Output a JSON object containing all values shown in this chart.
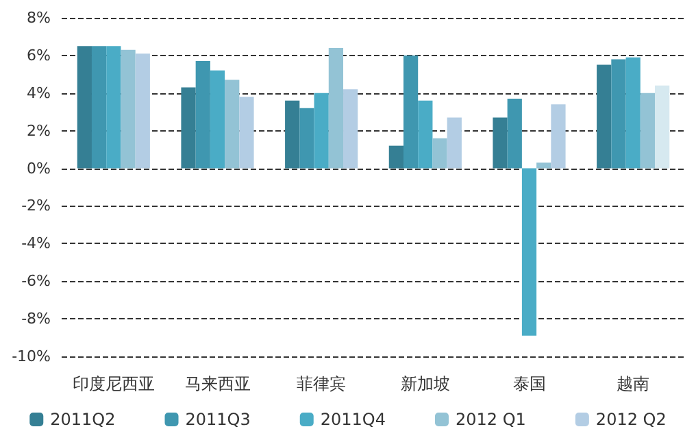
{
  "chart_data": {
    "type": "bar",
    "categories": [
      "印度尼西亚",
      "马来西亚",
      "菲律宾",
      "新加坡",
      "泰国",
      "越南"
    ],
    "series": [
      {
        "name": "2011Q2",
        "color": "#357f94",
        "values": [
          6.5,
          4.3,
          3.6,
          1.2,
          2.7,
          5.5
        ]
      },
      {
        "name": "2011Q3",
        "color": "#3f97b0",
        "values": [
          6.5,
          5.7,
          3.2,
          6.0,
          3.7,
          5.8
        ]
      },
      {
        "name": "2011Q4",
        "color": "#4aacc6",
        "values": [
          6.5,
          5.2,
          4.0,
          3.6,
          -8.9,
          5.9
        ]
      },
      {
        "name": "2012 Q1",
        "color": "#93c3d5",
        "values": [
          6.3,
          4.7,
          6.4,
          1.6,
          0.3,
          4.0
        ]
      },
      {
        "name": "2012 Q2",
        "color": "#b3cde4",
        "colors": [
          "#b3cde4",
          "#b3cde4",
          "#b3cde4",
          "#b3cde4",
          "#b3cde4",
          "#d6e9f0"
        ],
        "values": [
          6.1,
          3.8,
          4.2,
          2.7,
          3.4,
          4.4
        ]
      }
    ],
    "ylim": [
      -10,
      8
    ],
    "yticks": [
      {
        "value": -10,
        "label": "-10%"
      },
      {
        "value": -8,
        "label": "-8%"
      },
      {
        "value": -6,
        "label": "-6%"
      },
      {
        "value": -4,
        "label": "-4%"
      },
      {
        "value": -2,
        "label": "-2%"
      },
      {
        "value": 0,
        "label": "0%"
      },
      {
        "value": 2,
        "label": "2%"
      },
      {
        "value": 4,
        "label": "4%"
      },
      {
        "value": 6,
        "label": "6%"
      },
      {
        "value": 8,
        "label": "8%"
      }
    ],
    "grid": "y",
    "line_style": "dashed",
    "legend": "bottom"
  }
}
